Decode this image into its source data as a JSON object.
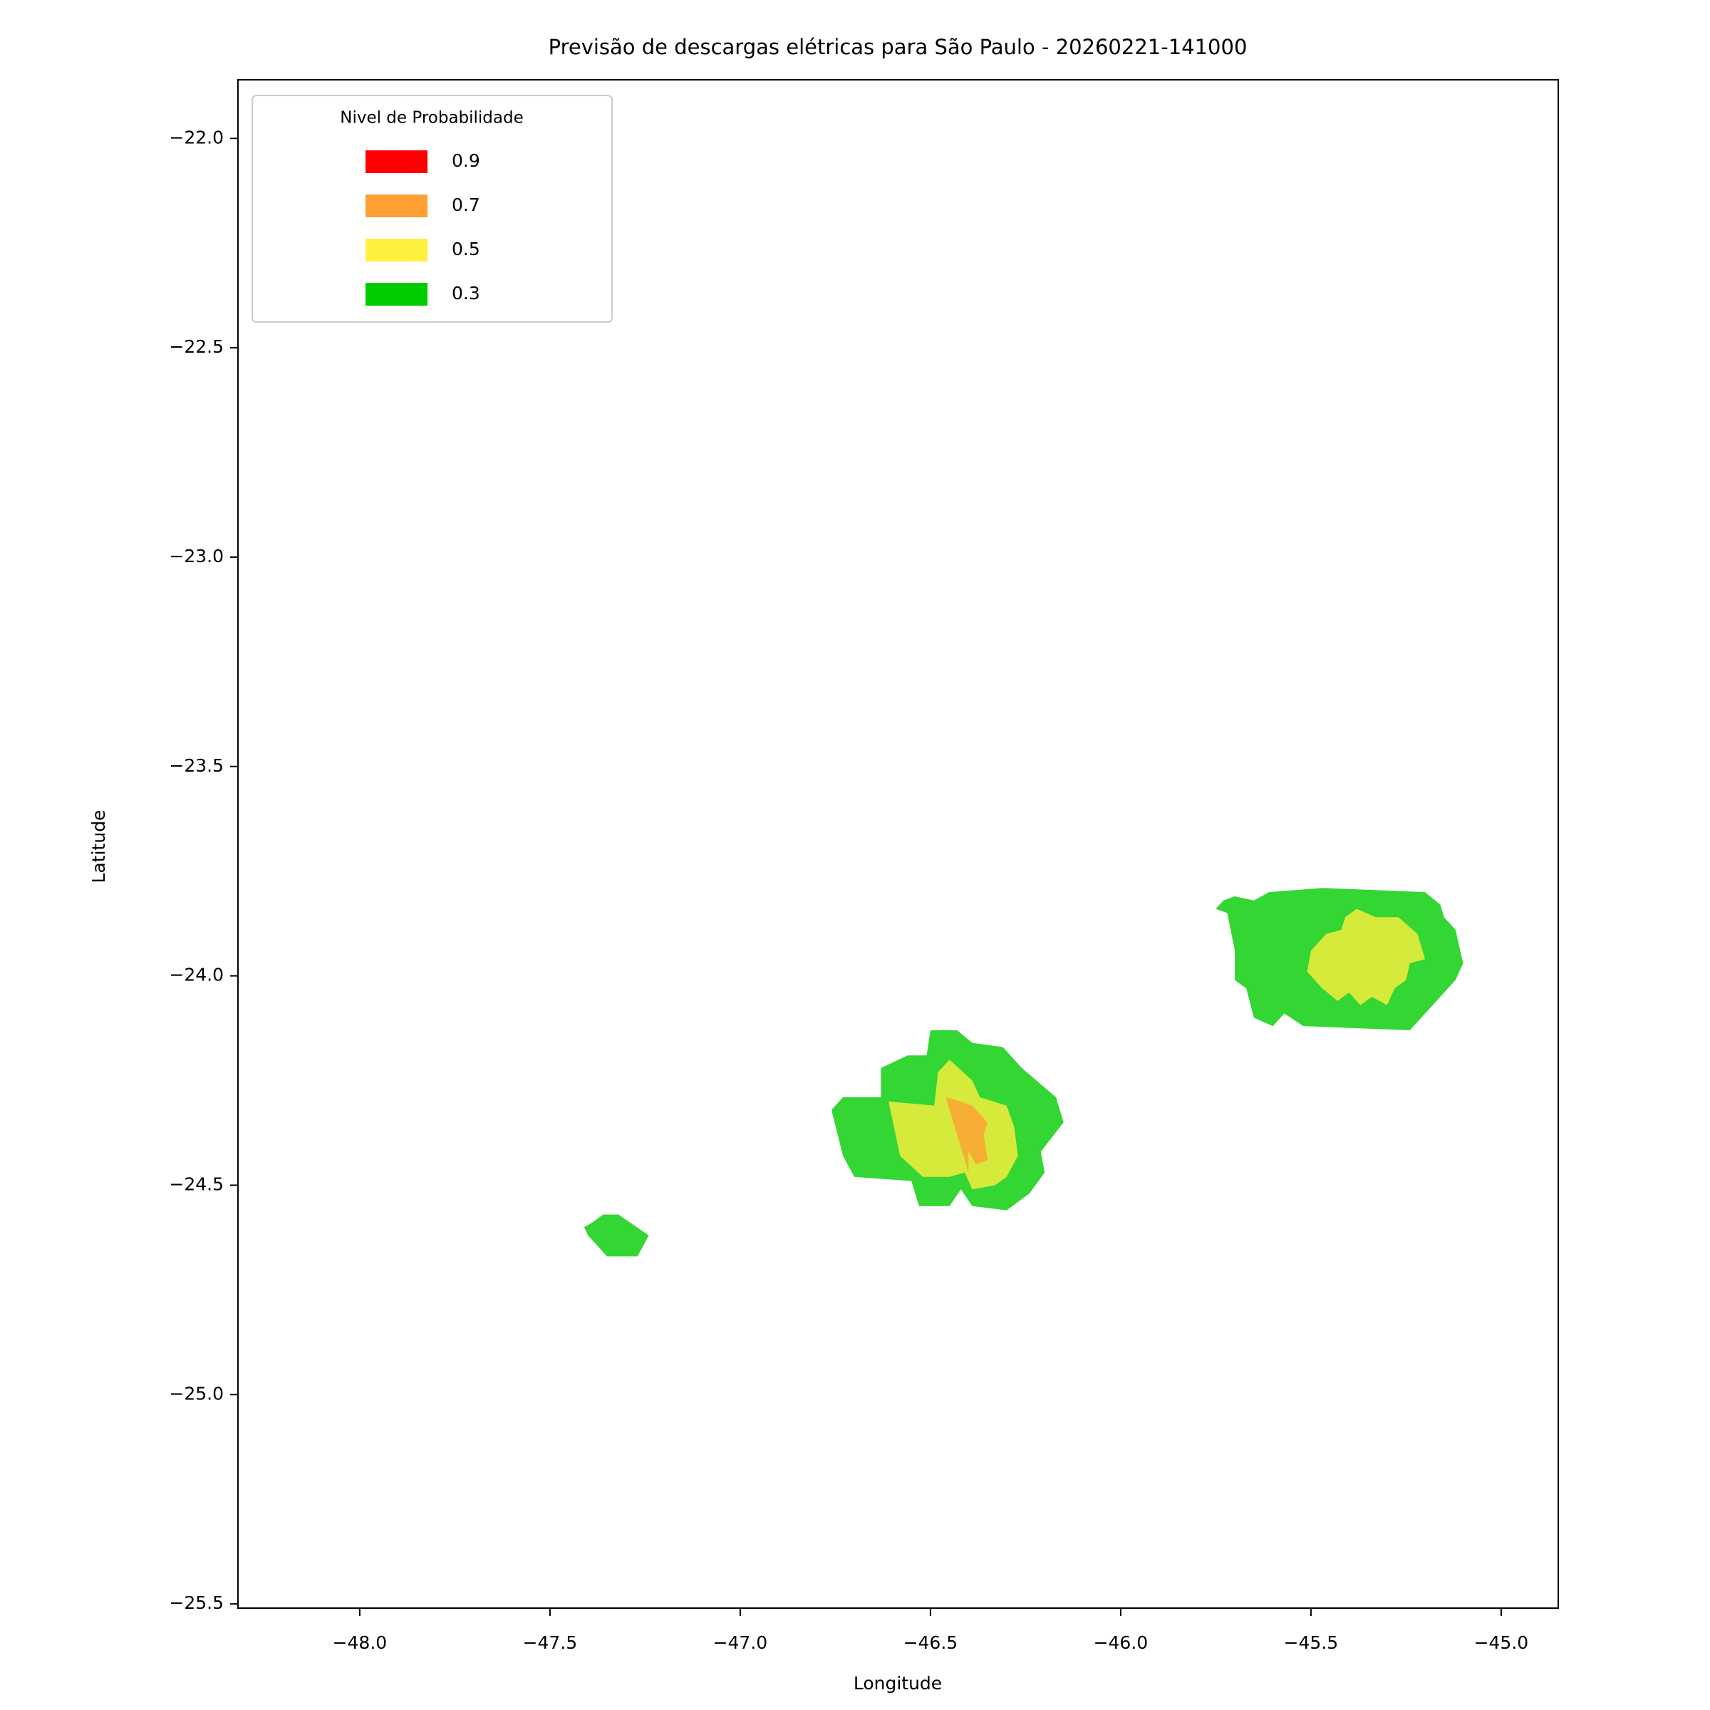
{
  "chart_data": {
    "type": "contour-map",
    "title": "Previsão de descargas elétricas para São Paulo - 20260221-141000",
    "x_label": "Longitude",
    "y_label": "Latitude",
    "xlim": [
      -48.32,
      -44.85
    ],
    "ylim": [
      -25.51,
      -21.86
    ],
    "xticks": [
      {
        "value": -48,
        "label": "−48.0"
      },
      {
        "value": -47.5,
        "label": "−47.5"
      },
      {
        "value": -47,
        "label": "−47.0"
      },
      {
        "value": -46.5,
        "label": "−46.5"
      },
      {
        "value": -46,
        "label": "−46.0"
      },
      {
        "value": -45.5,
        "label": "−45.5"
      },
      {
        "value": -45,
        "label": "−45.0"
      }
    ],
    "yticks": [
      {
        "value": -22,
        "label": "−22.0"
      },
      {
        "value": -22.5,
        "label": "−22.5"
      },
      {
        "value": -23,
        "label": "−23.0"
      },
      {
        "value": -23.5,
        "label": "−23.5"
      },
      {
        "value": -24,
        "label": "−24.0"
      },
      {
        "value": -24.5,
        "label": "−24.5"
      },
      {
        "value": -25,
        "label": "−25.0"
      },
      {
        "value": -25.5,
        "label": "−25.5"
      }
    ],
    "legend_title": "Nivel de Probabilidade",
    "legend_position": "upper left",
    "alpha": 0.8,
    "levels": [
      {
        "name": "0.9",
        "color": "#ff0000"
      },
      {
        "name": "0.7",
        "color": "#ff9f33"
      },
      {
        "name": "0.5",
        "color": "#ffef3f"
      },
      {
        "name": "0.3",
        "color": "#00cc00"
      }
    ],
    "regions": [
      {
        "level": "0.3",
        "lon": [
          -47.41,
          -47.39,
          -47.36,
          -47.32,
          -47.24,
          -47.27,
          -47.35,
          -47.4
        ],
        "lat": [
          -24.6,
          -24.59,
          -24.57,
          -24.57,
          -24.62,
          -24.67,
          -24.67,
          -24.62
        ]
      },
      {
        "level": "0.3",
        "lon": [
          -46.76,
          -46.73,
          -46.63,
          -46.63,
          -46.56,
          -46.51,
          -46.5,
          -46.43,
          -46.39,
          -46.31,
          -46.26,
          -46.17,
          -46.15,
          -46.21,
          -46.2,
          -46.24,
          -46.3,
          -46.39,
          -46.42,
          -46.45,
          -46.53,
          -46.55,
          -46.7,
          -46.73
        ],
        "lat": [
          -24.32,
          -24.29,
          -24.29,
          -24.22,
          -24.19,
          -24.19,
          -24.13,
          -24.13,
          -24.16,
          -24.17,
          -24.22,
          -24.29,
          -24.35,
          -24.42,
          -24.47,
          -24.52,
          -24.56,
          -24.55,
          -24.51,
          -24.55,
          -24.55,
          -24.49,
          -24.48,
          -24.43
        ]
      },
      {
        "level": "0.5",
        "lon": [
          -46.61,
          -46.49,
          -46.48,
          -46.45,
          -46.39,
          -46.37,
          -46.3,
          -46.28,
          -46.27,
          -46.3,
          -46.33,
          -46.39,
          -46.41,
          -46.45,
          -46.52,
          -46.58
        ],
        "lat": [
          -24.3,
          -24.31,
          -24.23,
          -24.2,
          -24.25,
          -24.29,
          -24.31,
          -24.36,
          -24.43,
          -24.48,
          -24.5,
          -24.51,
          -24.47,
          -24.48,
          -24.48,
          -24.43
        ]
      },
      {
        "level": "0.7",
        "lon": [
          -46.46,
          -46.42,
          -46.39,
          -46.35,
          -46.36,
          -46.35,
          -46.38,
          -46.4,
          -46.4
        ],
        "lat": [
          -24.29,
          -24.3,
          -24.31,
          -24.35,
          -24.38,
          -24.44,
          -24.45,
          -24.42,
          -24.47
        ]
      },
      {
        "level": "0.3",
        "lon": [
          -45.75,
          -45.73,
          -45.7,
          -45.65,
          -45.61,
          -45.47,
          -45.2,
          -45.16,
          -45.15,
          -45.12,
          -45.1,
          -45.12,
          -45.18,
          -45.24,
          -45.52,
          -45.57,
          -45.6,
          -45.65,
          -45.67,
          -45.7,
          -45.7,
          -45.72
        ],
        "lat": [
          -23.84,
          -23.82,
          -23.81,
          -23.82,
          -23.8,
          -23.79,
          -23.8,
          -23.83,
          -23.86,
          -23.89,
          -23.97,
          -24.01,
          -24.07,
          -24.13,
          -24.12,
          -24.09,
          -24.12,
          -24.1,
          -24.03,
          -24.01,
          -23.94,
          -23.85
        ]
      },
      {
        "level": "0.5",
        "lon": [
          -45.5,
          -45.46,
          -45.42,
          -45.41,
          -45.38,
          -45.33,
          -45.27,
          -45.22,
          -45.2,
          -45.24,
          -45.25,
          -45.28,
          -45.3,
          -45.34,
          -45.37,
          -45.4,
          -45.43,
          -45.47,
          -45.51
        ],
        "lat": [
          -23.94,
          -23.9,
          -23.89,
          -23.86,
          -23.84,
          -23.86,
          -23.86,
          -23.9,
          -23.96,
          -23.97,
          -24.01,
          -24.03,
          -24.07,
          -24.05,
          -24.07,
          -24.04,
          -24.06,
          -24.03,
          -23.99
        ]
      }
    ]
  }
}
